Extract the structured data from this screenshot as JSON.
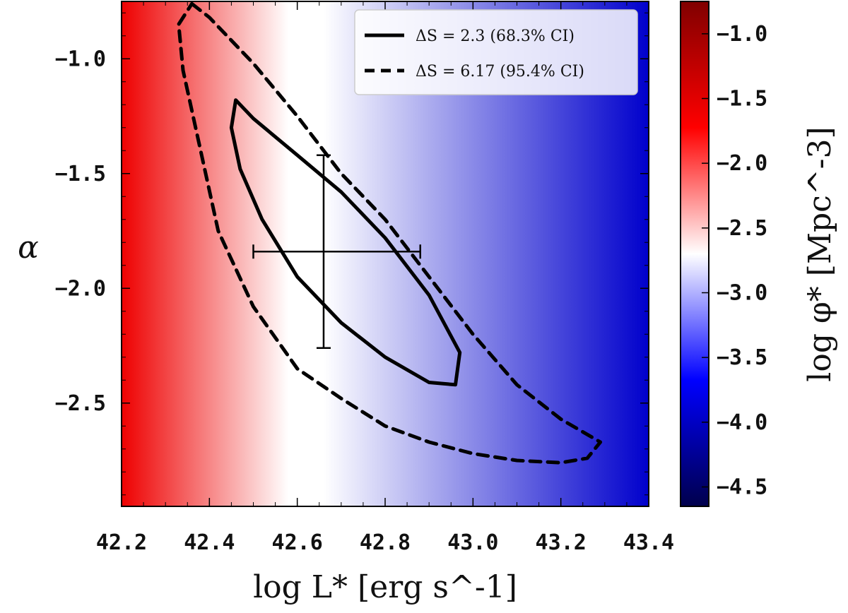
{
  "chart_data": {
    "type": "contour",
    "title": "",
    "xlabel": "log L* [erg s^-1]",
    "ylabel": "α",
    "colorbar_label": "log φ* [Mpc^-3]",
    "xlim": [
      42.2,
      43.4
    ],
    "ylim": [
      -2.95,
      -0.75
    ],
    "clim": [
      -4.65,
      -0.75
    ],
    "x_ticks": [
      42.2,
      42.4,
      42.6,
      42.8,
      43.0,
      43.2,
      43.4
    ],
    "x_tick_labels": [
      "42.2",
      "42.4",
      "42.6",
      "42.8",
      "43.0",
      "43.2",
      "43.4"
    ],
    "y_ticks": [
      -1.0,
      -1.5,
      -2.0,
      -2.5
    ],
    "y_tick_labels": [
      "−1.0",
      "−1.5",
      "−2.0",
      "−2.5"
    ],
    "colorbar_ticks": [
      -1.0,
      -1.5,
      -2.0,
      -2.5,
      -3.0,
      -3.5,
      -4.0,
      -4.5
    ],
    "colorbar_tick_labels": [
      "−1.0",
      "−1.5",
      "−2.0",
      "−2.5",
      "−3.0",
      "−3.5",
      "−4.0",
      "−4.5"
    ],
    "colormap": {
      "name": "seismic",
      "stops": [
        "#00004c",
        "#0000ff",
        "#ffffff",
        "#ff0000",
        "#800000"
      ],
      "background_gradient_x": [
        42.2,
        42.58,
        42.66,
        43.4
      ],
      "background_gradient_colors": [
        "#ee0000",
        "#ffffff",
        "#ffffff",
        "#0000cc"
      ]
    },
    "legend": {
      "position": "top-right",
      "entries": [
        {
          "label": "ΔS = 2.3 (68.3% CI)",
          "style": "solid"
        },
        {
          "label": "ΔS = 6.17 (95.4% CI)",
          "style": "dashed"
        }
      ]
    },
    "best_fit": {
      "x": 42.66,
      "y": -1.84,
      "xerr": [
        0.16,
        0.22
      ],
      "yerr": [
        0.42,
        0.42
      ]
    },
    "contours": [
      {
        "label": "ΔS = 2.3 (68.3% CI)",
        "style": "solid",
        "color": "#000000",
        "points": [
          [
            42.46,
            -1.18
          ],
          [
            42.5,
            -1.26
          ],
          [
            42.6,
            -1.42
          ],
          [
            42.7,
            -1.58
          ],
          [
            42.8,
            -1.78
          ],
          [
            42.9,
            -2.03
          ],
          [
            42.97,
            -2.28
          ],
          [
            42.96,
            -2.42
          ],
          [
            42.9,
            -2.41
          ],
          [
            42.8,
            -2.3
          ],
          [
            42.7,
            -2.15
          ],
          [
            42.6,
            -1.95
          ],
          [
            42.52,
            -1.7
          ],
          [
            42.47,
            -1.48
          ],
          [
            42.45,
            -1.3
          ],
          [
            42.46,
            -1.18
          ]
        ]
      },
      {
        "label": "ΔS = 6.17 (95.4% CI)",
        "style": "dashed",
        "color": "#000000",
        "points": [
          [
            42.36,
            -0.76
          ],
          [
            42.4,
            -0.82
          ],
          [
            42.5,
            -1.02
          ],
          [
            42.6,
            -1.25
          ],
          [
            42.7,
            -1.5
          ],
          [
            42.8,
            -1.7
          ],
          [
            42.9,
            -1.95
          ],
          [
            43.0,
            -2.2
          ],
          [
            43.1,
            -2.42
          ],
          [
            43.2,
            -2.57
          ],
          [
            43.29,
            -2.67
          ],
          [
            43.26,
            -2.74
          ],
          [
            43.2,
            -2.76
          ],
          [
            43.1,
            -2.75
          ],
          [
            43.0,
            -2.72
          ],
          [
            42.9,
            -2.67
          ],
          [
            42.8,
            -2.6
          ],
          [
            42.7,
            -2.48
          ],
          [
            42.6,
            -2.35
          ],
          [
            42.5,
            -2.08
          ],
          [
            42.42,
            -1.75
          ],
          [
            42.38,
            -1.4
          ],
          [
            42.34,
            -1.05
          ],
          [
            42.33,
            -0.85
          ],
          [
            42.36,
            -0.76
          ]
        ]
      }
    ]
  }
}
